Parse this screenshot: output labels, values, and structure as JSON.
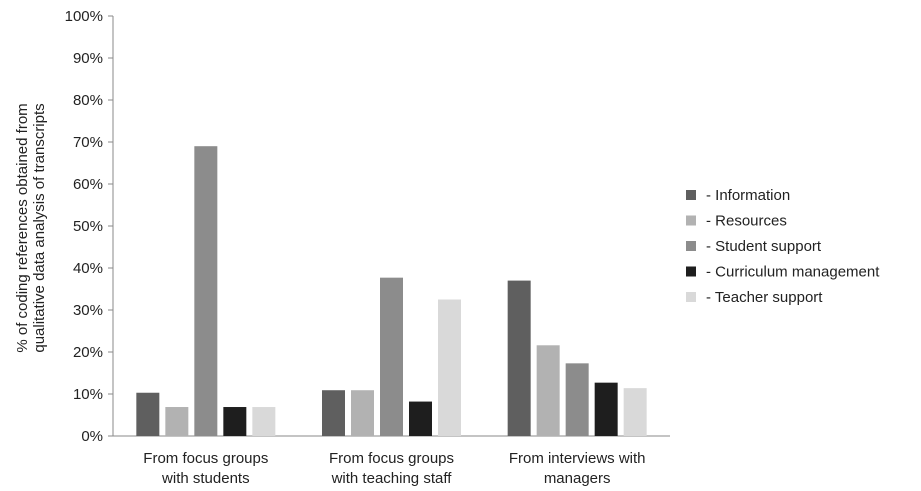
{
  "chart_data": {
    "type": "bar",
    "title": "",
    "xlabel": "",
    "ylabel_lines": [
      "% of coding references obtained from",
      "qualitative data analysis of transcripts"
    ],
    "ylim": [
      0,
      100
    ],
    "y_ticks": [
      "0%",
      "10%",
      "20%",
      "30%",
      "40%",
      "50%",
      "60%",
      "70%",
      "80%",
      "90%",
      "100%"
    ],
    "grid": false,
    "legend_position": "right",
    "categories": [
      [
        "From focus groups",
        "with students"
      ],
      [
        "From focus groups",
        "with teaching staff"
      ],
      [
        "From interviews with",
        "managers"
      ]
    ],
    "series": [
      {
        "name": "- Information",
        "color": "#5f5f5f",
        "values": [
          10.3,
          10.9,
          37.0
        ]
      },
      {
        "name": "- Resources",
        "color": "#b2b2b2",
        "values": [
          6.9,
          10.9,
          21.6
        ]
      },
      {
        "name": "- Student support",
        "color": "#8c8c8c",
        "values": [
          69.0,
          37.7,
          17.3
        ]
      },
      {
        "name": "- Curriculum management",
        "color": "#1e1e1e",
        "values": [
          6.9,
          8.2,
          12.7
        ]
      },
      {
        "name": "- Teacher support",
        "color": "#d9d9d9",
        "values": [
          6.9,
          32.5,
          11.4
        ]
      }
    ]
  }
}
